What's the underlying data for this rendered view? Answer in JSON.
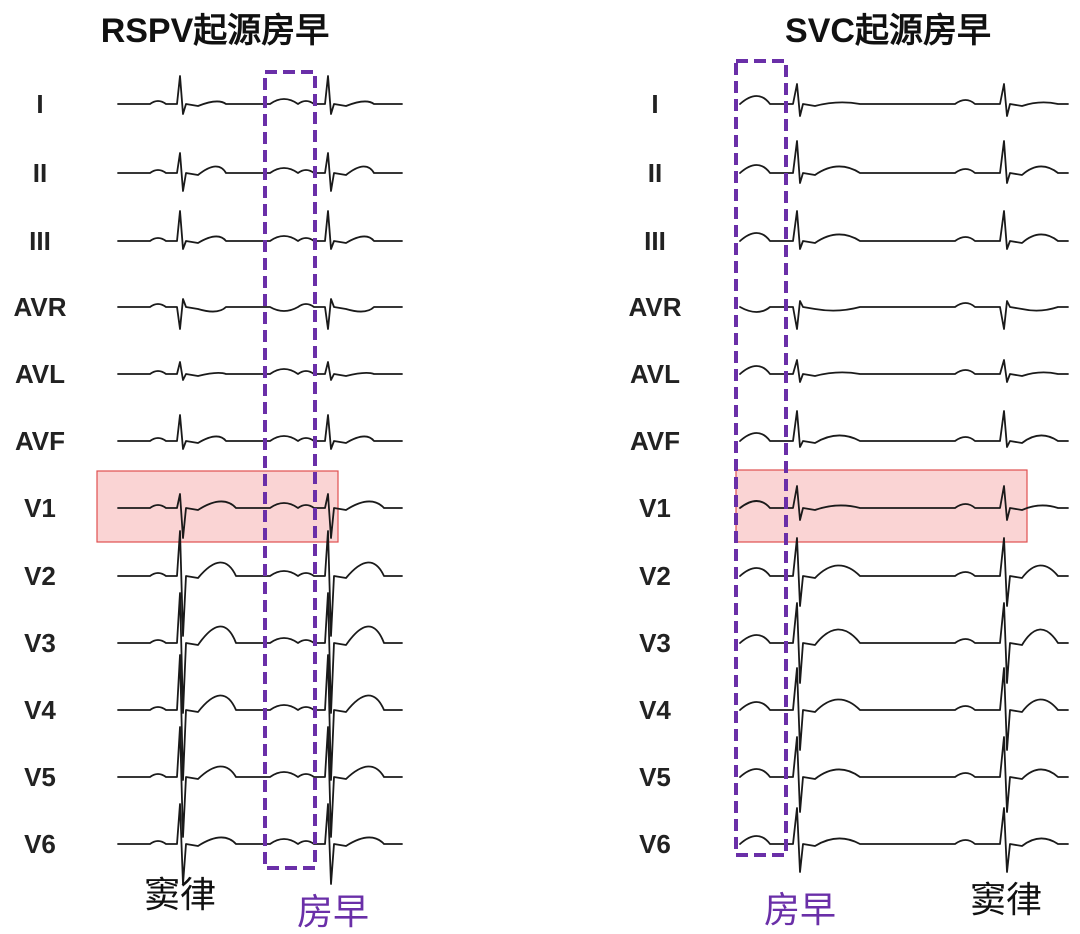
{
  "colors": {
    "trace": "#1a1a1a",
    "dashed_box": "#6a2fa8",
    "highlight_fill": "#f7b7b7",
    "highlight_stroke": "#e05050",
    "caption_black": "#111111",
    "caption_purple": "#6a2fa8"
  },
  "leads": [
    "I",
    "II",
    "III",
    "AVR",
    "AVL",
    "AVF",
    "V1",
    "V2",
    "V3",
    "V4",
    "V5",
    "V6"
  ],
  "panels": [
    {
      "title": "RSPV起源房早",
      "captions": {
        "sinus": "窦律",
        "premature": "房早"
      }
    },
    {
      "title": "SVC起源房早",
      "captions": {
        "sinus": "窦律",
        "premature": "房早"
      }
    }
  ]
}
